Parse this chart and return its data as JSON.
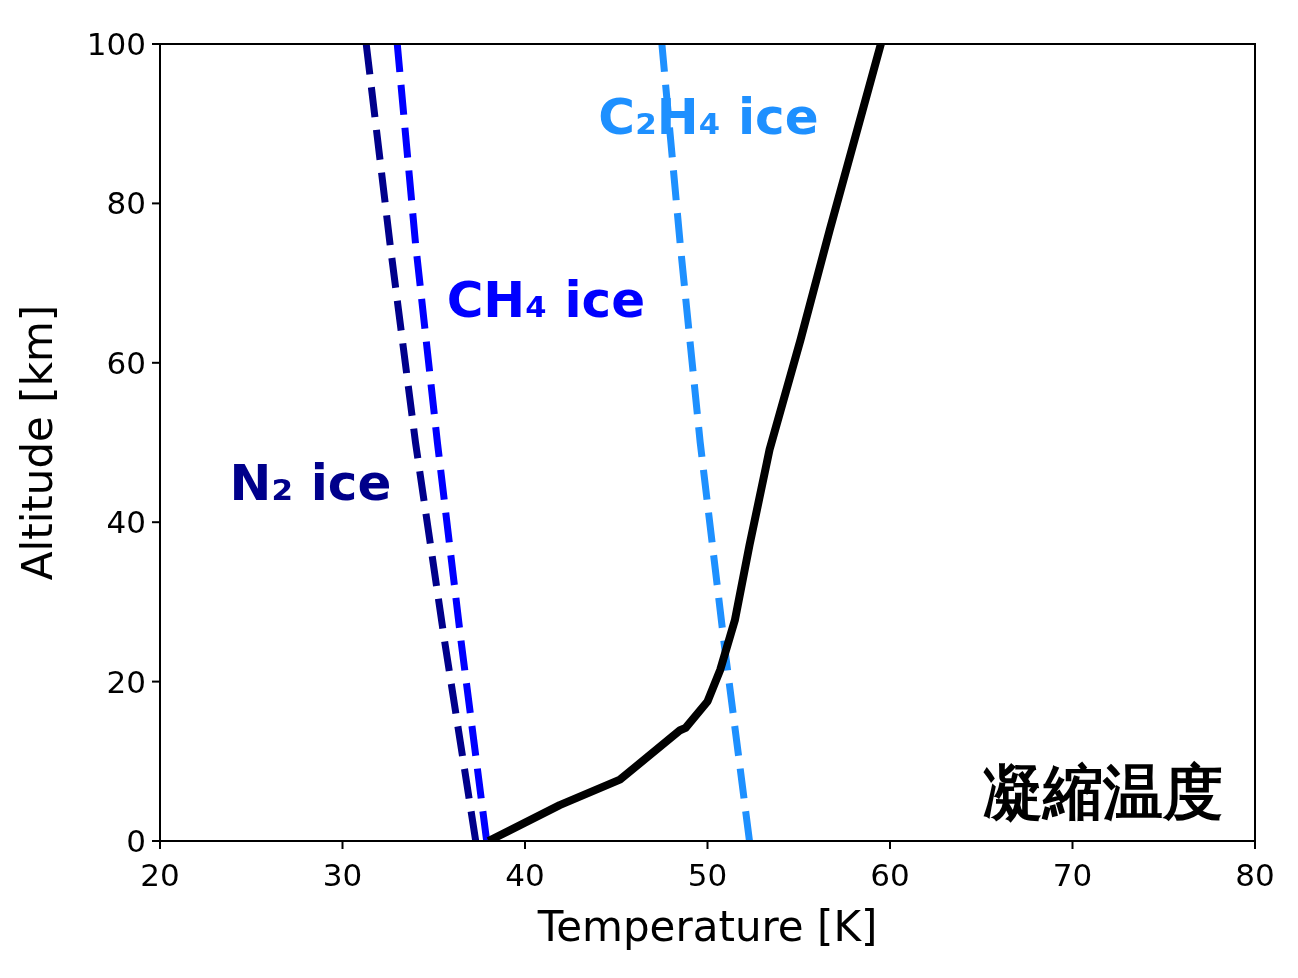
{
  "chart_data": {
    "type": "line",
    "xlabel": "Temperature [K]",
    "ylabel": "Altitude [km]",
    "xlim": [
      20,
      80
    ],
    "ylim": [
      0,
      100
    ],
    "xticks": [
      20,
      30,
      40,
      50,
      60,
      70,
      80
    ],
    "yticks": [
      0,
      20,
      40,
      60,
      80,
      100
    ],
    "grid": false,
    "legend": false,
    "annotations": [
      "凝縮温度"
    ],
    "series": [
      {
        "name": "N₂ ice",
        "color": "#00008b",
        "line_style": "dashed",
        "x": [
          37.3,
          35.6,
          34.0,
          32.6,
          31.3
        ],
        "values": [
          0,
          25,
          50,
          75,
          100
        ]
      },
      {
        "name": "CH₄ ice",
        "color": "#0000ff",
        "line_style": "dashed",
        "x": [
          37.9,
          36.5,
          35.2,
          34.0,
          33.0
        ],
        "values": [
          0,
          25,
          50,
          75,
          100
        ]
      },
      {
        "name": "C₂H₄ ice",
        "color": "#1e90ff",
        "line_style": "dashed",
        "x": [
          52.3,
          50.9,
          49.6,
          48.5,
          47.5
        ],
        "values": [
          0,
          25,
          50,
          75,
          100
        ]
      },
      {
        "color": "#000000",
        "line_style": "solid",
        "x": [
          38.0,
          41.9,
          45.2,
          48.5,
          48.8,
          50.0,
          50.7,
          51.5,
          52.3,
          53.4,
          55.1,
          56.7,
          59.5
        ],
        "values": [
          0,
          4.5,
          7.7,
          13.9,
          14.2,
          17.5,
          21.5,
          27.7,
          37.1,
          49.1,
          62.9,
          76.7,
          100
        ]
      }
    ]
  }
}
